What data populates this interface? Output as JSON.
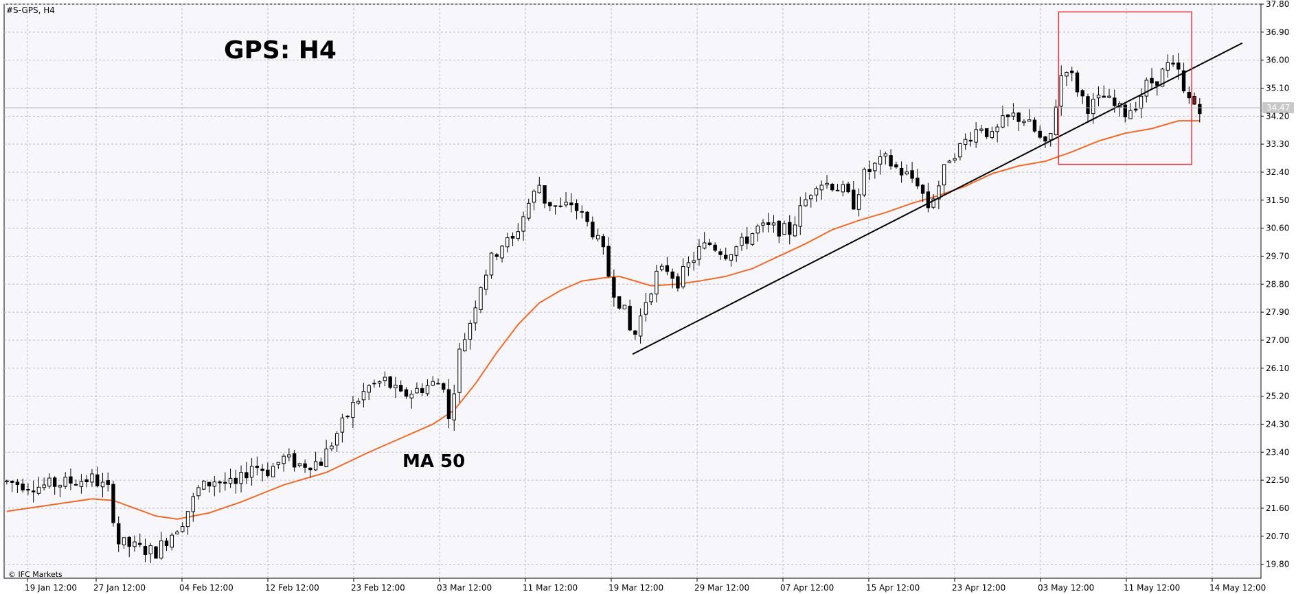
{
  "symbol_header": "#S-GPS, H4",
  "main_title": "GPS: H4",
  "ma_label": "MA 50",
  "copyright": "© IFC Markets",
  "current_price_label": "34.47",
  "colors": {
    "background": "#f7f7fb",
    "grid": "#b9b9c2",
    "candle": "#000000",
    "ma": "#f06a28",
    "trendline": "#000000",
    "highlight_box": "#e4323c",
    "last_candle": "#8b1a1a",
    "price_line": "#b0b0b0"
  },
  "chart_data": {
    "type": "candlestick",
    "timeframe": "H4",
    "title": "GPS: H4",
    "ylim": [
      19.35,
      37.8
    ],
    "y_ticks": [
      "37.80",
      "36.90",
      "36.00",
      "35.10",
      "34.20",
      "33.30",
      "32.40",
      "31.50",
      "30.60",
      "29.70",
      "28.80",
      "27.90",
      "27.00",
      "26.10",
      "25.20",
      "24.30",
      "23.40",
      "22.50",
      "21.60",
      "20.70",
      "19.80"
    ],
    "x_ticks": [
      "19 Jan 12:00",
      "27 Jan 12:00",
      "04 Feb 12:00",
      "12 Feb 12:00",
      "23 Feb 12:00",
      "03 Mar 12:00",
      "11 Mar 12:00",
      "19 Mar 12:00",
      "29 Mar 12:00",
      "07 Apr 12:00",
      "15 Apr 12:00",
      "23 Apr 12:00",
      "03 May 12:00",
      "11 May 12:00",
      "14 May 12:00"
    ],
    "last_price": 34.47,
    "anchors": [
      [
        0,
        22.45
      ],
      [
        6,
        22.3
      ],
      [
        12,
        22.45
      ],
      [
        16,
        22.55
      ],
      [
        19,
        22.2
      ],
      [
        21,
        20.5
      ],
      [
        25,
        20.3
      ],
      [
        28,
        20.2
      ],
      [
        30,
        20.6
      ],
      [
        33,
        21.2
      ],
      [
        36,
        22.2
      ],
      [
        39,
        22.5
      ],
      [
        43,
        22.3
      ],
      [
        46,
        23.0
      ],
      [
        49,
        22.8
      ],
      [
        52,
        23.2
      ],
      [
        55,
        23.0
      ],
      [
        59,
        23.1
      ],
      [
        62,
        24.0
      ],
      [
        65,
        24.9
      ],
      [
        68,
        25.5
      ],
      [
        71,
        25.7
      ],
      [
        74,
        25.2
      ],
      [
        77,
        25.4
      ],
      [
        80,
        25.6
      ],
      [
        82,
        25.6
      ],
      [
        83,
        24.4
      ],
      [
        85,
        26.6
      ],
      [
        87,
        27.6
      ],
      [
        89,
        28.8
      ],
      [
        91,
        29.6
      ],
      [
        93,
        30.1
      ],
      [
        95,
        30.2
      ],
      [
        98,
        31.4
      ],
      [
        100,
        32.0
      ],
      [
        101,
        31.5
      ],
      [
        104,
        31.2
      ],
      [
        106,
        31.4
      ],
      [
        108,
        31.0
      ],
      [
        110,
        30.5
      ],
      [
        112,
        29.8
      ],
      [
        113,
        29.1
      ],
      [
        114,
        28.6
      ],
      [
        116,
        27.9
      ],
      [
        117,
        27.3
      ],
      [
        118,
        27.2
      ],
      [
        120,
        28.3
      ],
      [
        122,
        29.1
      ],
      [
        124,
        29.3
      ],
      [
        126,
        28.9
      ],
      [
        128,
        29.4
      ],
      [
        130,
        29.9
      ],
      [
        132,
        30.1
      ],
      [
        135,
        29.8
      ],
      [
        138,
        30.1
      ],
      [
        141,
        30.6
      ],
      [
        144,
        30.6
      ],
      [
        147,
        30.5
      ],
      [
        150,
        31.5
      ],
      [
        152,
        32.1
      ],
      [
        155,
        32.0
      ],
      [
        157,
        31.8
      ],
      [
        159,
        31.4
      ],
      [
        161,
        32.3
      ],
      [
        163,
        32.6
      ],
      [
        165,
        32.8
      ],
      [
        168,
        32.4
      ],
      [
        171,
        32.1
      ],
      [
        173,
        31.3
      ],
      [
        175,
        32.0
      ],
      [
        177,
        32.9
      ],
      [
        179,
        33.2
      ],
      [
        181,
        33.6
      ],
      [
        183,
        33.9
      ],
      [
        185,
        33.5
      ],
      [
        187,
        34.0
      ],
      [
        189,
        34.2
      ],
      [
        191,
        34.1
      ],
      [
        193,
        33.7
      ],
      [
        195,
        33.2
      ],
      [
        196,
        33.6
      ],
      [
        197,
        34.6
      ],
      [
        198,
        35.5
      ],
      [
        199,
        35.8
      ],
      [
        201,
        35.1
      ],
      [
        203,
        34.5
      ],
      [
        206,
        34.8
      ],
      [
        208,
        34.5
      ],
      [
        210,
        34.3
      ],
      [
        212,
        34.6
      ],
      [
        214,
        35.2
      ],
      [
        216,
        35.4
      ],
      [
        218,
        35.8
      ],
      [
        220,
        35.6
      ],
      [
        221,
        34.9
      ],
      [
        223,
        34.6
      ],
      [
        224,
        34.5
      ]
    ],
    "moving_average": {
      "name": "MA 50",
      "period": 50,
      "points": [
        [
          0,
          21.5
        ],
        [
          10,
          21.75
        ],
        [
          16,
          21.9
        ],
        [
          20,
          21.85
        ],
        [
          24,
          21.6
        ],
        [
          28,
          21.35
        ],
        [
          32,
          21.25
        ],
        [
          38,
          21.45
        ],
        [
          44,
          21.8
        ],
        [
          52,
          22.35
        ],
        [
          60,
          22.75
        ],
        [
          68,
          23.4
        ],
        [
          74,
          23.85
        ],
        [
          80,
          24.3
        ],
        [
          84,
          24.75
        ],
        [
          88,
          25.6
        ],
        [
          92,
          26.6
        ],
        [
          96,
          27.5
        ],
        [
          100,
          28.2
        ],
        [
          104,
          28.6
        ],
        [
          108,
          28.9
        ],
        [
          112,
          29.0
        ],
        [
          115,
          29.05
        ],
        [
          118,
          28.9
        ],
        [
          121,
          28.75
        ],
        [
          126,
          28.8
        ],
        [
          130,
          28.9
        ],
        [
          135,
          29.05
        ],
        [
          140,
          29.3
        ],
        [
          145,
          29.7
        ],
        [
          150,
          30.1
        ],
        [
          155,
          30.55
        ],
        [
          160,
          30.85
        ],
        [
          165,
          31.1
        ],
        [
          170,
          31.4
        ],
        [
          175,
          31.65
        ],
        [
          180,
          31.95
        ],
        [
          185,
          32.35
        ],
        [
          190,
          32.6
        ],
        [
          195,
          32.75
        ],
        [
          200,
          33.05
        ],
        [
          205,
          33.4
        ],
        [
          210,
          33.65
        ],
        [
          215,
          33.8
        ],
        [
          220,
          34.05
        ],
        [
          224,
          34.05
        ]
      ]
    },
    "trendline": {
      "start": [
        117.5,
        26.55
      ],
      "end": [
        232,
        36.55
      ]
    },
    "highlight_box": {
      "x_range": [
        197.5,
        222.5
      ],
      "y_range": [
        32.65,
        37.55
      ]
    }
  }
}
